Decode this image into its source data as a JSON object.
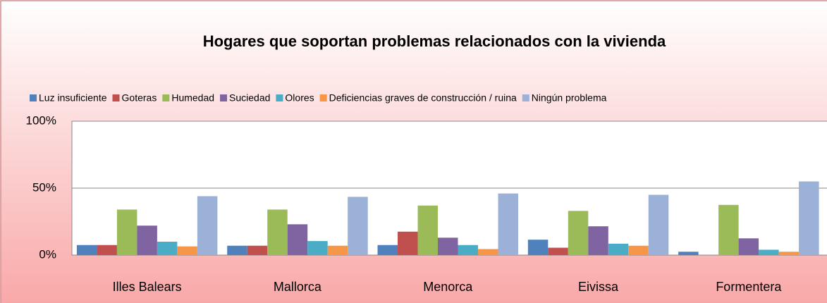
{
  "chart_data": {
    "type": "bar",
    "title": "Hogares que soportan problemas relacionados con la vivienda",
    "categories": [
      "Illes Balears",
      "Mallorca",
      "Menorca",
      "Eivissa",
      "Formentera"
    ],
    "series": [
      {
        "name": "Luz insuficiente",
        "color": "#4f81bd",
        "values": [
          7.5,
          7,
          7.5,
          11.5,
          2.5
        ]
      },
      {
        "name": "Goteras",
        "color": "#c0504d",
        "values": [
          7.5,
          7,
          17.5,
          5.5,
          0
        ]
      },
      {
        "name": "Humedad",
        "color": "#9bbb59",
        "values": [
          34,
          34,
          37,
          33,
          37.5
        ]
      },
      {
        "name": "Suciedad",
        "color": "#8064a2",
        "values": [
          22,
          23,
          13,
          21.5,
          12.5
        ]
      },
      {
        "name": "Olores",
        "color": "#4bacc6",
        "values": [
          10,
          10.5,
          7.5,
          8.5,
          4
        ]
      },
      {
        "name": "Deficiencias graves de construcción / ruina",
        "color": "#f79646",
        "values": [
          6.5,
          7,
          4.5,
          7,
          2.5
        ]
      },
      {
        "name": "Ningún problema",
        "color": "#9bb1d8",
        "values": [
          44,
          43.5,
          46,
          45,
          55
        ]
      }
    ],
    "ylim": [
      0,
      100
    ],
    "yticks": [
      {
        "value": 0,
        "label": "0%"
      },
      {
        "value": 50,
        "label": "50%"
      },
      {
        "value": 100,
        "label": "100%"
      }
    ],
    "grid": true,
    "legend": "top"
  }
}
